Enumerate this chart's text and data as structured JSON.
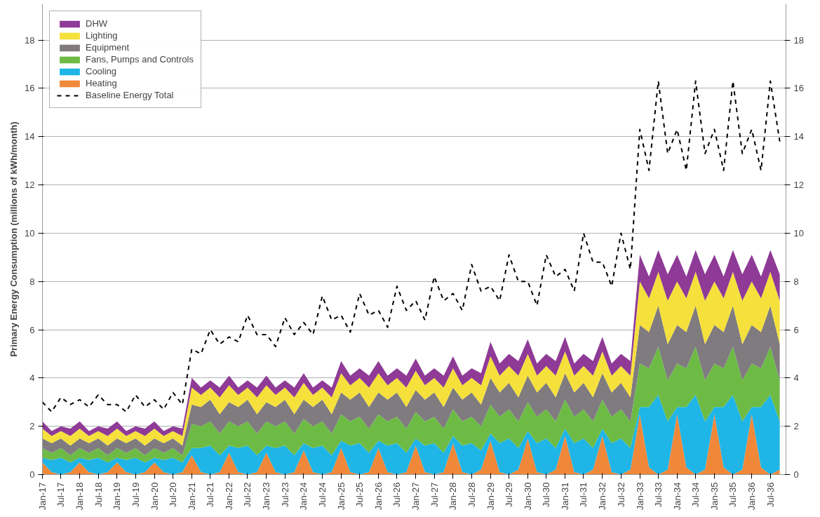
{
  "chart_data": {
    "type": "area",
    "stacked": true,
    "ylabel": "Primary Energy Consumption (millions of kWh/month)",
    "legend": "top left",
    "grid": "y",
    "ylim": [
      0,
      19.5
    ],
    "yticks": [
      0,
      2,
      4,
      6,
      8,
      10,
      12,
      14,
      16,
      18
    ],
    "y2lim": [
      0,
      19.5
    ],
    "y2ticks": [
      0,
      2,
      4,
      6,
      8,
      10,
      12,
      14,
      16,
      18
    ],
    "xlim": [
      "2017-01",
      "2036-12"
    ],
    "xticks": [
      {
        "value": "2017-01",
        "label": "Jan-17"
      },
      {
        "value": "2017-07",
        "label": "Jul-17"
      },
      {
        "value": "2018-01",
        "label": "Jan-18"
      },
      {
        "value": "2018-07",
        "label": "Jul-18"
      },
      {
        "value": "2019-01",
        "label": "Jan-19"
      },
      {
        "value": "2019-07",
        "label": "Jul-19"
      },
      {
        "value": "2020-01",
        "label": "Jan-20"
      },
      {
        "value": "2020-07",
        "label": "Jul-20"
      },
      {
        "value": "2021-01",
        "label": "Jan-21"
      },
      {
        "value": "2021-07",
        "label": "Jul-21"
      },
      {
        "value": "2022-01",
        "label": "Jan-22"
      },
      {
        "value": "2022-07",
        "label": "Jul-22"
      },
      {
        "value": "2023-01",
        "label": "Jan-23"
      },
      {
        "value": "2023-07",
        "label": "Jul-23"
      },
      {
        "value": "2024-01",
        "label": "Jan-24"
      },
      {
        "value": "2024-07",
        "label": "Jul-24"
      },
      {
        "value": "2025-01",
        "label": "Jan-25"
      },
      {
        "value": "2025-07",
        "label": "Jul-25"
      },
      {
        "value": "2026-01",
        "label": "Jan-26"
      },
      {
        "value": "2026-07",
        "label": "Jul-26"
      },
      {
        "value": "2027-01",
        "label": "Jan-27"
      },
      {
        "value": "2027-07",
        "label": "Jul-27"
      },
      {
        "value": "2028-01",
        "label": "Jan-28"
      },
      {
        "value": "2028-07",
        "label": "Jul-28"
      },
      {
        "value": "2029-01",
        "label": "Jan-29"
      },
      {
        "value": "2029-07",
        "label": "Jul-29"
      },
      {
        "value": "2030-01",
        "label": "Jan-30"
      },
      {
        "value": "2030-07",
        "label": "Jul-30"
      },
      {
        "value": "2031-01",
        "label": "Jan-31"
      },
      {
        "value": "2031-07",
        "label": "Jul-31"
      },
      {
        "value": "2032-01",
        "label": "Jan-32"
      },
      {
        "value": "2032-07",
        "label": "Jul-32"
      },
      {
        "value": "2033-01",
        "label": "Jan-33"
      },
      {
        "value": "2033-07",
        "label": "Jul-33"
      },
      {
        "value": "2034-01",
        "label": "Jan-34"
      },
      {
        "value": "2034-07",
        "label": "Jul-34"
      },
      {
        "value": "2035-01",
        "label": "Jan-35"
      },
      {
        "value": "2035-07",
        "label": "Jul-35"
      },
      {
        "value": "2036-01",
        "label": "Jan-36"
      },
      {
        "value": "2036-07",
        "label": "Jul-36"
      }
    ],
    "x": [
      "2017-01",
      "2017-04",
      "2017-07",
      "2017-10",
      "2018-01",
      "2018-04",
      "2018-07",
      "2018-10",
      "2019-01",
      "2019-04",
      "2019-07",
      "2019-10",
      "2020-01",
      "2020-04",
      "2020-07",
      "2020-10",
      "2021-01",
      "2021-04",
      "2021-07",
      "2021-10",
      "2022-01",
      "2022-04",
      "2022-07",
      "2022-10",
      "2023-01",
      "2023-04",
      "2023-07",
      "2023-10",
      "2024-01",
      "2024-04",
      "2024-07",
      "2024-10",
      "2025-01",
      "2025-04",
      "2025-07",
      "2025-10",
      "2026-01",
      "2026-04",
      "2026-07",
      "2026-10",
      "2027-01",
      "2027-04",
      "2027-07",
      "2027-10",
      "2028-01",
      "2028-04",
      "2028-07",
      "2028-10",
      "2029-01",
      "2029-04",
      "2029-07",
      "2029-10",
      "2030-01",
      "2030-04",
      "2030-07",
      "2030-10",
      "2031-01",
      "2031-04",
      "2031-07",
      "2031-10",
      "2032-01",
      "2032-04",
      "2032-07",
      "2032-10",
      "2033-01",
      "2033-04",
      "2033-07",
      "2033-10",
      "2034-01",
      "2034-04",
      "2034-07",
      "2034-10",
      "2035-01",
      "2035-04",
      "2035-07",
      "2035-10",
      "2036-01",
      "2036-04",
      "2036-07",
      "2036-10"
    ],
    "series": [
      {
        "name": "Heating",
        "color": "#f0883a",
        "values": [
          0.5,
          0.1,
          0,
          0.1,
          0.5,
          0.1,
          0,
          0.1,
          0.5,
          0.1,
          0,
          0.1,
          0.5,
          0.1,
          0,
          0.1,
          0.8,
          0.1,
          0,
          0.1,
          0.9,
          0.1,
          0,
          0.1,
          0.9,
          0.1,
          0,
          0.1,
          1.0,
          0.1,
          0,
          0.1,
          1.1,
          0.1,
          0,
          0.1,
          1.1,
          0.1,
          0,
          0.1,
          1.2,
          0.1,
          0,
          0.1,
          1.3,
          0.1,
          0,
          0.2,
          1.4,
          0.1,
          0,
          0.2,
          1.5,
          0.1,
          0,
          0.2,
          1.6,
          0.1,
          0,
          0.2,
          1.6,
          0.1,
          0,
          0.2,
          2.5,
          0.3,
          0,
          0.2,
          2.5,
          0.3,
          0,
          0.2,
          2.5,
          0.3,
          0,
          0.2,
          2.5,
          0.3,
          0,
          0.2
        ]
      },
      {
        "name": "Cooling",
        "color": "#1fb5e6",
        "values": [
          0.2,
          0.5,
          0.7,
          0.4,
          0.2,
          0.5,
          0.7,
          0.4,
          0.2,
          0.5,
          0.7,
          0.4,
          0.2,
          0.5,
          0.7,
          0.4,
          0.3,
          1.0,
          1.2,
          0.7,
          0.3,
          1.0,
          1.2,
          0.7,
          0.3,
          1.0,
          1.2,
          0.7,
          0.3,
          1.0,
          1.2,
          0.7,
          0.3,
          1.1,
          1.3,
          0.8,
          0.3,
          1.1,
          1.3,
          0.8,
          0.3,
          1.1,
          1.3,
          0.8,
          0.3,
          1.1,
          1.3,
          0.8,
          0.3,
          1.2,
          1.5,
          0.9,
          0.3,
          1.2,
          1.5,
          0.9,
          0.3,
          1.2,
          1.5,
          0.9,
          0.3,
          1.2,
          1.5,
          0.9,
          0.3,
          2.5,
          3.3,
          2.0,
          0.3,
          2.5,
          3.3,
          2.0,
          0.3,
          2.5,
          3.3,
          2.0,
          0.3,
          2.5,
          3.3,
          2.0
        ]
      },
      {
        "name": "Fans, Pumps and Controls",
        "color": "#6dbb45",
        "values": [
          0.4,
          0.3,
          0.4,
          0.3,
          0.4,
          0.3,
          0.4,
          0.3,
          0.4,
          0.3,
          0.4,
          0.3,
          0.4,
          0.3,
          0.4,
          0.3,
          1.0,
          0.9,
          1.0,
          0.9,
          1.0,
          0.9,
          1.0,
          0.9,
          1.0,
          0.9,
          1.0,
          0.9,
          1.0,
          0.9,
          1.0,
          0.9,
          1.1,
          1.0,
          1.1,
          1.0,
          1.1,
          1.0,
          1.1,
          1.0,
          1.1,
          1.0,
          1.1,
          1.0,
          1.1,
          1.0,
          1.1,
          1.0,
          1.2,
          1.1,
          1.2,
          1.1,
          1.2,
          1.1,
          1.2,
          1.1,
          1.2,
          1.1,
          1.2,
          1.1,
          1.2,
          1.1,
          1.2,
          1.1,
          1.8,
          1.6,
          2.0,
          1.7,
          1.8,
          1.6,
          2.0,
          1.7,
          1.8,
          1.6,
          2.0,
          1.7,
          1.8,
          1.6,
          2.0,
          1.7
        ]
      },
      {
        "name": "Equipment",
        "color": "#7f7b7f",
        "values": [
          0.4,
          0.4,
          0.4,
          0.4,
          0.4,
          0.4,
          0.4,
          0.4,
          0.4,
          0.4,
          0.4,
          0.4,
          0.4,
          0.4,
          0.4,
          0.4,
          0.8,
          0.8,
          0.9,
          0.8,
          0.8,
          0.8,
          0.9,
          0.8,
          0.8,
          0.8,
          0.9,
          0.8,
          0.8,
          0.8,
          0.9,
          0.8,
          0.9,
          0.9,
          1.0,
          0.9,
          0.9,
          0.9,
          1.0,
          0.9,
          0.9,
          0.9,
          1.0,
          0.9,
          0.9,
          0.9,
          1.0,
          0.9,
          1.1,
          1.0,
          1.1,
          1.0,
          1.1,
          1.0,
          1.1,
          1.0,
          1.1,
          1.0,
          1.1,
          1.0,
          1.1,
          1.0,
          1.1,
          1.0,
          1.6,
          1.5,
          1.7,
          1.5,
          1.6,
          1.5,
          1.7,
          1.5,
          1.6,
          1.5,
          1.7,
          1.5,
          1.6,
          1.5,
          1.7,
          1.5
        ]
      },
      {
        "name": "Lighting",
        "color": "#f5e03c",
        "values": [
          0.4,
          0.3,
          0.3,
          0.4,
          0.4,
          0.3,
          0.3,
          0.4,
          0.4,
          0.3,
          0.3,
          0.4,
          0.4,
          0.3,
          0.3,
          0.4,
          0.7,
          0.5,
          0.5,
          0.7,
          0.7,
          0.5,
          0.5,
          0.7,
          0.7,
          0.5,
          0.5,
          0.7,
          0.7,
          0.5,
          0.5,
          0.7,
          0.8,
          0.6,
          0.6,
          0.8,
          0.8,
          0.6,
          0.6,
          0.8,
          0.8,
          0.6,
          0.6,
          0.8,
          0.8,
          0.6,
          0.6,
          0.8,
          0.9,
          0.7,
          0.7,
          0.9,
          0.9,
          0.7,
          0.7,
          0.9,
          0.9,
          0.7,
          0.7,
          0.9,
          0.9,
          0.7,
          0.7,
          0.9,
          1.8,
          1.4,
          1.4,
          1.8,
          1.8,
          1.4,
          1.4,
          1.8,
          1.8,
          1.4,
          1.4,
          1.8,
          1.8,
          1.4,
          1.4,
          1.8
        ]
      },
      {
        "name": "DHW",
        "color": "#8e3a96",
        "values": [
          0.3,
          0.2,
          0.2,
          0.3,
          0.3,
          0.2,
          0.2,
          0.3,
          0.3,
          0.2,
          0.2,
          0.3,
          0.3,
          0.2,
          0.2,
          0.3,
          0.4,
          0.3,
          0.3,
          0.4,
          0.4,
          0.3,
          0.3,
          0.4,
          0.4,
          0.3,
          0.3,
          0.4,
          0.4,
          0.3,
          0.3,
          0.4,
          0.5,
          0.4,
          0.4,
          0.5,
          0.5,
          0.4,
          0.4,
          0.5,
          0.5,
          0.4,
          0.4,
          0.5,
          0.5,
          0.4,
          0.4,
          0.5,
          0.6,
          0.5,
          0.5,
          0.6,
          0.6,
          0.5,
          0.5,
          0.6,
          0.6,
          0.5,
          0.5,
          0.6,
          0.6,
          0.5,
          0.5,
          0.6,
          1.1,
          0.9,
          0.9,
          1.1,
          1.1,
          0.9,
          0.9,
          1.1,
          1.1,
          0.9,
          0.9,
          1.1,
          1.1,
          0.9,
          0.9,
          1.1
        ]
      },
      {
        "name": "Baseline Energy Total",
        "type": "line",
        "line_style": "dashed",
        "color": "#000000",
        "values": [
          3.0,
          2.6,
          3.2,
          2.9,
          3.1,
          2.8,
          3.3,
          2.9,
          2.9,
          2.6,
          3.3,
          2.8,
          3.1,
          2.7,
          3.4,
          2.9,
          5.2,
          5.0,
          6.0,
          5.4,
          5.7,
          5.5,
          6.6,
          5.8,
          5.8,
          5.3,
          6.5,
          5.8,
          6.3,
          5.8,
          7.4,
          6.4,
          6.6,
          5.9,
          7.5,
          6.6,
          6.8,
          6.1,
          7.8,
          6.8,
          7.2,
          6.4,
          8.2,
          7.2,
          7.5,
          6.8,
          8.7,
          7.6,
          7.8,
          7.2,
          9.1,
          8.0,
          8.0,
          7.0,
          9.1,
          8.2,
          8.5,
          7.6,
          10.0,
          8.8,
          8.8,
          7.8,
          10.0,
          8.5,
          14.3,
          12.6,
          16.3,
          13.3,
          14.3,
          12.6,
          16.3,
          13.3,
          14.3,
          12.6,
          16.3,
          13.3,
          14.3,
          12.6,
          16.3,
          13.8
        ]
      }
    ]
  }
}
